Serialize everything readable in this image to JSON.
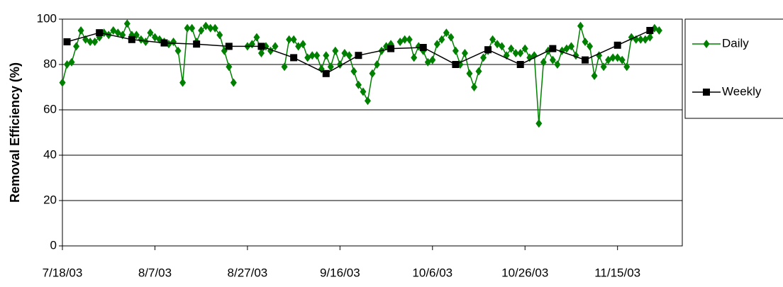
{
  "chart_data": {
    "type": "line",
    "ylabel": "Removal Efficiency (%)",
    "xlim": [
      "7/18/03",
      "11/29/03"
    ],
    "xticks": [
      "7/18/03",
      "8/7/03",
      "8/27/03",
      "9/16/03",
      "10/6/03",
      "10/26/03",
      "11/15/03"
    ],
    "ylim": [
      0,
      100
    ],
    "yticks": [
      0,
      20,
      40,
      60,
      80,
      100
    ],
    "grid": true,
    "legend": "right",
    "series": [
      {
        "name": "Daily",
        "color": "#008000",
        "marker": "diamond",
        "x": [
          "7/18/03",
          "7/19/03",
          "7/20/03",
          "7/21/03",
          "7/22/03",
          "7/23/03",
          "7/24/03",
          "7/25/03",
          "7/26/03",
          "7/27/03",
          "7/28/03",
          "7/29/03",
          "7/30/03",
          "7/31/03",
          "8/1/03",
          "8/2/03",
          "8/3/03",
          "8/4/03",
          "8/5/03",
          "8/6/03",
          "8/7/03",
          "8/8/03",
          "8/9/03",
          "8/10/03",
          "8/11/03",
          "8/12/03",
          "8/13/03",
          "8/14/03",
          "8/15/03",
          "8/16/03",
          "8/17/03",
          "8/18/03",
          "8/19/03",
          "8/20/03",
          "8/21/03",
          "8/22/03",
          "8/23/03",
          "8/24/03",
          "8/25/03",
          "8/26/03",
          "8/27/03",
          "8/28/03",
          "8/29/03",
          "8/30/03",
          "8/31/03",
          "9/1/03",
          "9/2/03",
          "9/3/03",
          "9/4/03",
          "9/5/03",
          "9/6/03",
          "9/7/03",
          "9/8/03",
          "9/9/03",
          "9/10/03",
          "9/11/03",
          "9/12/03",
          "9/13/03",
          "9/14/03",
          "9/15/03",
          "9/16/03",
          "9/17/03",
          "9/18/03",
          "9/19/03",
          "9/20/03",
          "9/21/03",
          "9/22/03",
          "9/23/03",
          "9/24/03",
          "9/25/03",
          "9/26/03",
          "9/27/03",
          "9/28/03",
          "9/29/03",
          "9/30/03",
          "10/1/03",
          "10/2/03",
          "10/3/03",
          "10/4/03",
          "10/5/03",
          "10/6/03",
          "10/7/03",
          "10/8/03",
          "10/9/03",
          "10/10/03",
          "10/11/03",
          "10/12/03",
          "10/13/03",
          "10/14/03",
          "10/15/03",
          "10/16/03",
          "10/17/03",
          "10/18/03",
          "10/19/03",
          "10/20/03",
          "10/21/03",
          "10/22/03",
          "10/23/03",
          "10/24/03",
          "10/25/03",
          "10/26/03",
          "10/27/03",
          "10/28/03",
          "10/29/03",
          "10/30/03",
          "10/31/03",
          "11/1/03",
          "11/2/03",
          "11/3/03",
          "11/4/03",
          "11/5/03",
          "11/6/03",
          "11/7/03",
          "11/8/03",
          "11/9/03",
          "11/10/03",
          "11/11/03",
          "11/12/03",
          "11/13/03",
          "11/14/03",
          "11/15/03",
          "11/16/03",
          "11/17/03",
          "11/18/03",
          "11/19/03",
          "11/20/03",
          "11/21/03",
          "11/22/03",
          "11/23/03",
          "11/24/03"
        ],
        "values": [
          72,
          80,
          81,
          88,
          95,
          91,
          90,
          90,
          92,
          94,
          93,
          95,
          94,
          93,
          98,
          93,
          93,
          91,
          90,
          94,
          92,
          91,
          90,
          89,
          90,
          86,
          72,
          96,
          96,
          90,
          95,
          97,
          96,
          96,
          93,
          86,
          79,
          72,
          null,
          null,
          88,
          89,
          92,
          85,
          88,
          86,
          88,
          null,
          79,
          91,
          91,
          88,
          89,
          83,
          84,
          84,
          78,
          84,
          79,
          86,
          80,
          85,
          84,
          77,
          71,
          68,
          64,
          76,
          80,
          86,
          88,
          89,
          null,
          90,
          91,
          91,
          83,
          88,
          86,
          81,
          82,
          89,
          91,
          94,
          92,
          86,
          80,
          85,
          76,
          70,
          77,
          83,
          86,
          91,
          89,
          88,
          84,
          87,
          85,
          85,
          87,
          83,
          84,
          54,
          81,
          86,
          82,
          80,
          86,
          87,
          88,
          84,
          97,
          90,
          88,
          75,
          84,
          79,
          82,
          83,
          83,
          82,
          79,
          92,
          91,
          91,
          91,
          92,
          96,
          95
        ]
      },
      {
        "name": "Weekly",
        "color": "#000000",
        "marker": "square",
        "x": [
          "7/19/03",
          "7/26/03",
          "8/2/03",
          "8/9/03",
          "8/16/03",
          "8/23/03",
          "8/30/03",
          "9/6/03",
          "9/13/03",
          "9/20/03",
          "9/27/03",
          "10/4/03",
          "10/11/03",
          "10/18/03",
          "10/25/03",
          "11/1/03",
          "11/8/03",
          "11/15/03",
          "11/22/03"
        ],
        "values": [
          90,
          94,
          91,
          89.5,
          89,
          88,
          88,
          83,
          76,
          84,
          87,
          87.5,
          80,
          86.5,
          80,
          87,
          82,
          88.5,
          95
        ]
      }
    ]
  }
}
